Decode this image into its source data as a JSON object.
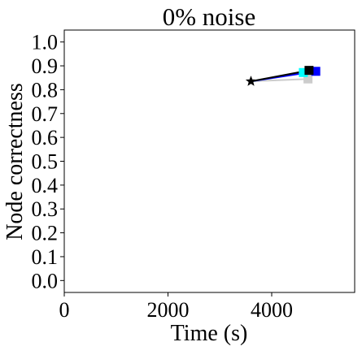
{
  "chart_data": {
    "type": "line",
    "title": "0% noise",
    "xlabel": "Time (s)",
    "ylabel": "Node correctness",
    "xlim": [
      0,
      5600
    ],
    "ylim": [
      -0.05,
      1.05
    ],
    "xticks": [
      0,
      2000,
      4000
    ],
    "xtick_labels": [
      "0",
      "2000",
      "4000"
    ],
    "yticks": [
      0.0,
      0.1,
      0.2,
      0.3,
      0.4,
      0.5,
      0.6,
      0.7,
      0.8,
      0.9,
      1.0
    ],
    "ytick_labels": [
      "0.0",
      "0.1",
      "0.2",
      "0.3",
      "0.4",
      "0.5",
      "0.6",
      "0.7",
      "0.8",
      "0.9",
      "1.0"
    ],
    "grid": false,
    "legend": false,
    "start_point": {
      "x": 3600,
      "y": 0.835,
      "marker": "star",
      "color": "#000000"
    },
    "series": [
      {
        "color": "#cccccc",
        "marker": "square",
        "points": [
          {
            "x": 3600,
            "y": 0.835
          },
          {
            "x": 4700,
            "y": 0.845
          }
        ]
      },
      {
        "color": "#00ffff",
        "marker": "square",
        "points": [
          {
            "x": 3600,
            "y": 0.835
          },
          {
            "x": 4610,
            "y": 0.872
          }
        ]
      },
      {
        "color": "#0000ff",
        "marker": "square",
        "points": [
          {
            "x": 3600,
            "y": 0.835
          },
          {
            "x": 4850,
            "y": 0.877
          }
        ]
      },
      {
        "color": "#000000",
        "marker": "square",
        "points": [
          {
            "x": 3600,
            "y": 0.835
          },
          {
            "x": 4720,
            "y": 0.881
          }
        ]
      }
    ]
  }
}
